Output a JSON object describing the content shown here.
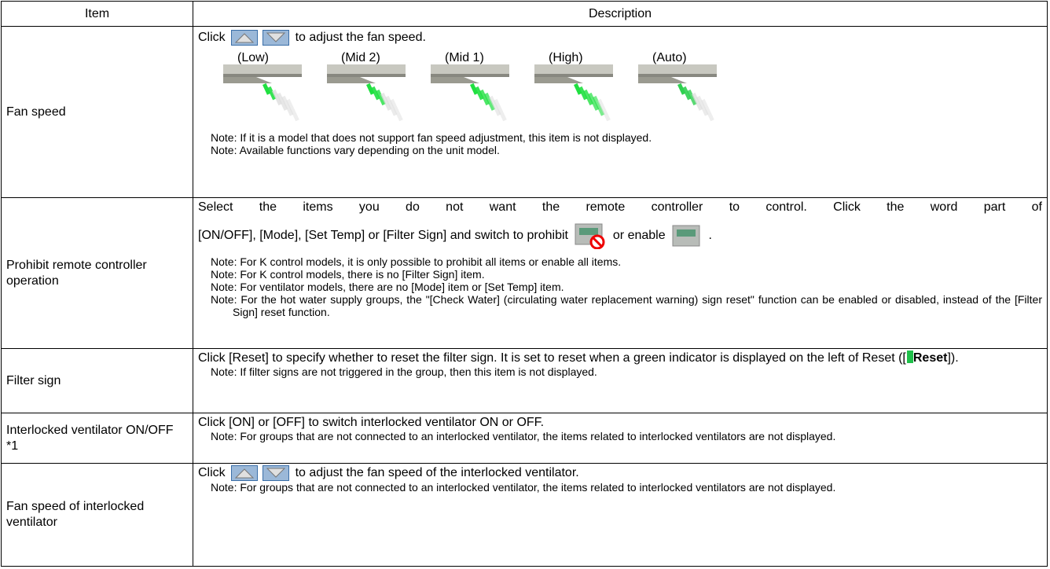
{
  "table": {
    "header": [
      "Item",
      "Description"
    ],
    "rows": [
      {
        "item": "Fan speed",
        "text_before": "Click",
        "text_after": "to adjust the fan speed.",
        "speed_labels": [
          "(Low)",
          "(Mid 2)",
          "(Mid 1)",
          "(High)",
          "(Auto)"
        ],
        "notes": [
          "Note: If it is a model that does not support fan speed adjustment, this item is not displayed.",
          "Note: Available functions vary depending on the unit model."
        ]
      },
      {
        "item": "Prohibit remote controller operation",
        "text": "Select the items you do not want the remote controller to control. Click the word part of",
        "text2": "[ON/OFF], [Mode], [Set Temp] or [Filter Sign] and switch to prohibit",
        "text3": "or enable",
        "text4": ".",
        "notes": [
          "Note: For K control models, it is only possible to prohibit all items or enable all items.",
          "Note: For K control models, there is no [Filter Sign] item.",
          "Note: For ventilator models, there are no [Mode] item or [Set Temp] item.",
          "Note: For the hot water supply groups, the \"[Check Water]   (circulating water replacement warning) sign reset\" function can be enabled or disabled, instead of the [Filter Sign] reset function."
        ]
      },
      {
        "item": "Filter sign",
        "text": "Click [Reset] to specify whether to reset the filter sign. It is set to reset when a green indicator is displayed on the left of Reset ([",
        "bold": "Reset",
        "text_end": "]).",
        "notes": [
          "Note: If filter signs are not triggered in the group, then this item is not displayed."
        ]
      },
      {
        "item": "Interlocked ventilator ON/OFF *1",
        "text": "Click [ON] or [OFF] to switch interlocked ventilator ON or OFF.",
        "notes": [
          "Note: For groups that are not connected to an interlocked ventilator, the items related to interlocked ventilators are not displayed."
        ]
      },
      {
        "item": "Fan speed of interlocked ventilator",
        "text_before": "Click",
        "text_after": "to adjust the fan speed of the interlocked ventilator.",
        "notes": [
          "Note: For groups that are not connected to an interlocked ventilator, the items related to interlocked ventilators are not displayed."
        ]
      }
    ]
  }
}
